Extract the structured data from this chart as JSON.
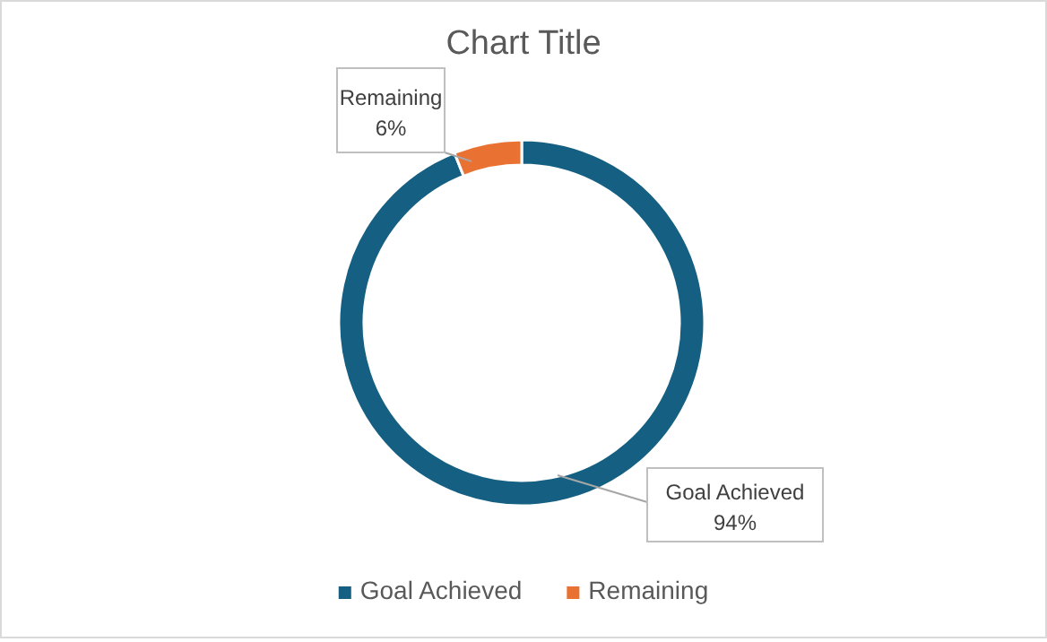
{
  "chart_data": {
    "type": "donut",
    "title": "Chart Title",
    "categories": [
      "Goal Achieved",
      "Remaining"
    ],
    "values": [
      94,
      6
    ],
    "value_labels": [
      "94%",
      "6%"
    ],
    "colors": [
      "#156082",
      "#e97132"
    ],
    "legend": "bottom"
  }
}
